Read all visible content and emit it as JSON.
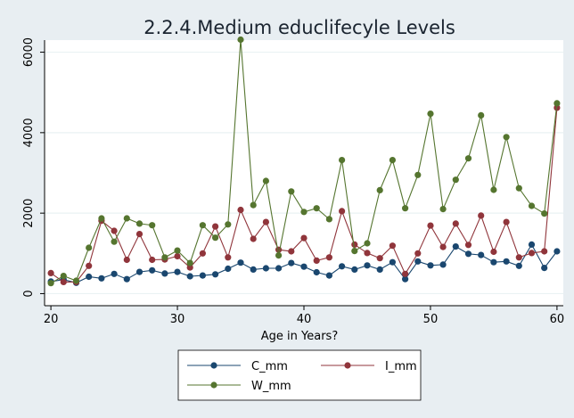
{
  "chart_data": {
    "type": "line",
    "title": "2.2.4.Medium educlifecyle Levels",
    "xlabel": "Age in Years?",
    "ylabel": "",
    "xlim": [
      19.5,
      60.5
    ],
    "ylim": [
      -300,
      6300
    ],
    "xticks": [
      20,
      30,
      40,
      50,
      60
    ],
    "yticks": [
      0,
      2000,
      4000,
      6000
    ],
    "grid": true,
    "legend_position": "bottom",
    "x": [
      20,
      21,
      22,
      23,
      24,
      25,
      26,
      27,
      28,
      29,
      30,
      31,
      32,
      33,
      34,
      35,
      36,
      37,
      38,
      39,
      40,
      41,
      42,
      43,
      44,
      45,
      46,
      47,
      48,
      49,
      50,
      51,
      52,
      53,
      54,
      55,
      56,
      57,
      58,
      59,
      60
    ],
    "series": [
      {
        "name": "C_mm",
        "color": "#1a476f",
        "marker": "circle",
        "values": [
          300,
          350,
          270,
          420,
          380,
          490,
          360,
          540,
          580,
          500,
          540,
          430,
          450,
          480,
          620,
          770,
          600,
          630,
          630,
          760,
          670,
          530,
          450,
          680,
          600,
          700,
          600,
          780,
          360,
          800,
          700,
          720,
          1170,
          990,
          960,
          780,
          800,
          690,
          1220,
          640,
          1050
        ]
      },
      {
        "name": "I_mm",
        "color": "#90353b",
        "marker": "circle",
        "values": [
          510,
          290,
          290,
          690,
          1810,
          1560,
          840,
          1480,
          840,
          850,
          930,
          650,
          1000,
          1670,
          900,
          2080,
          1360,
          1780,
          1090,
          1050,
          1380,
          820,
          900,
          2050,
          1220,
          1010,
          880,
          1190,
          490,
          1000,
          1690,
          1160,
          1740,
          1210,
          1940,
          1040,
          1780,
          900,
          1010,
          1050,
          4620
        ]
      },
      {
        "name": "W_mm",
        "color": "#55752f",
        "marker": "circle",
        "values": [
          260,
          440,
          320,
          1140,
          1870,
          1290,
          1870,
          1740,
          1700,
          900,
          1070,
          760,
          1700,
          1390,
          1720,
          6310,
          2200,
          2800,
          950,
          2540,
          2030,
          2120,
          1850,
          3320,
          1060,
          1250,
          2570,
          3320,
          2120,
          2950,
          4470,
          2100,
          2830,
          3360,
          4430,
          2580,
          3890,
          2620,
          2180,
          1990,
          4730
        ]
      }
    ]
  }
}
